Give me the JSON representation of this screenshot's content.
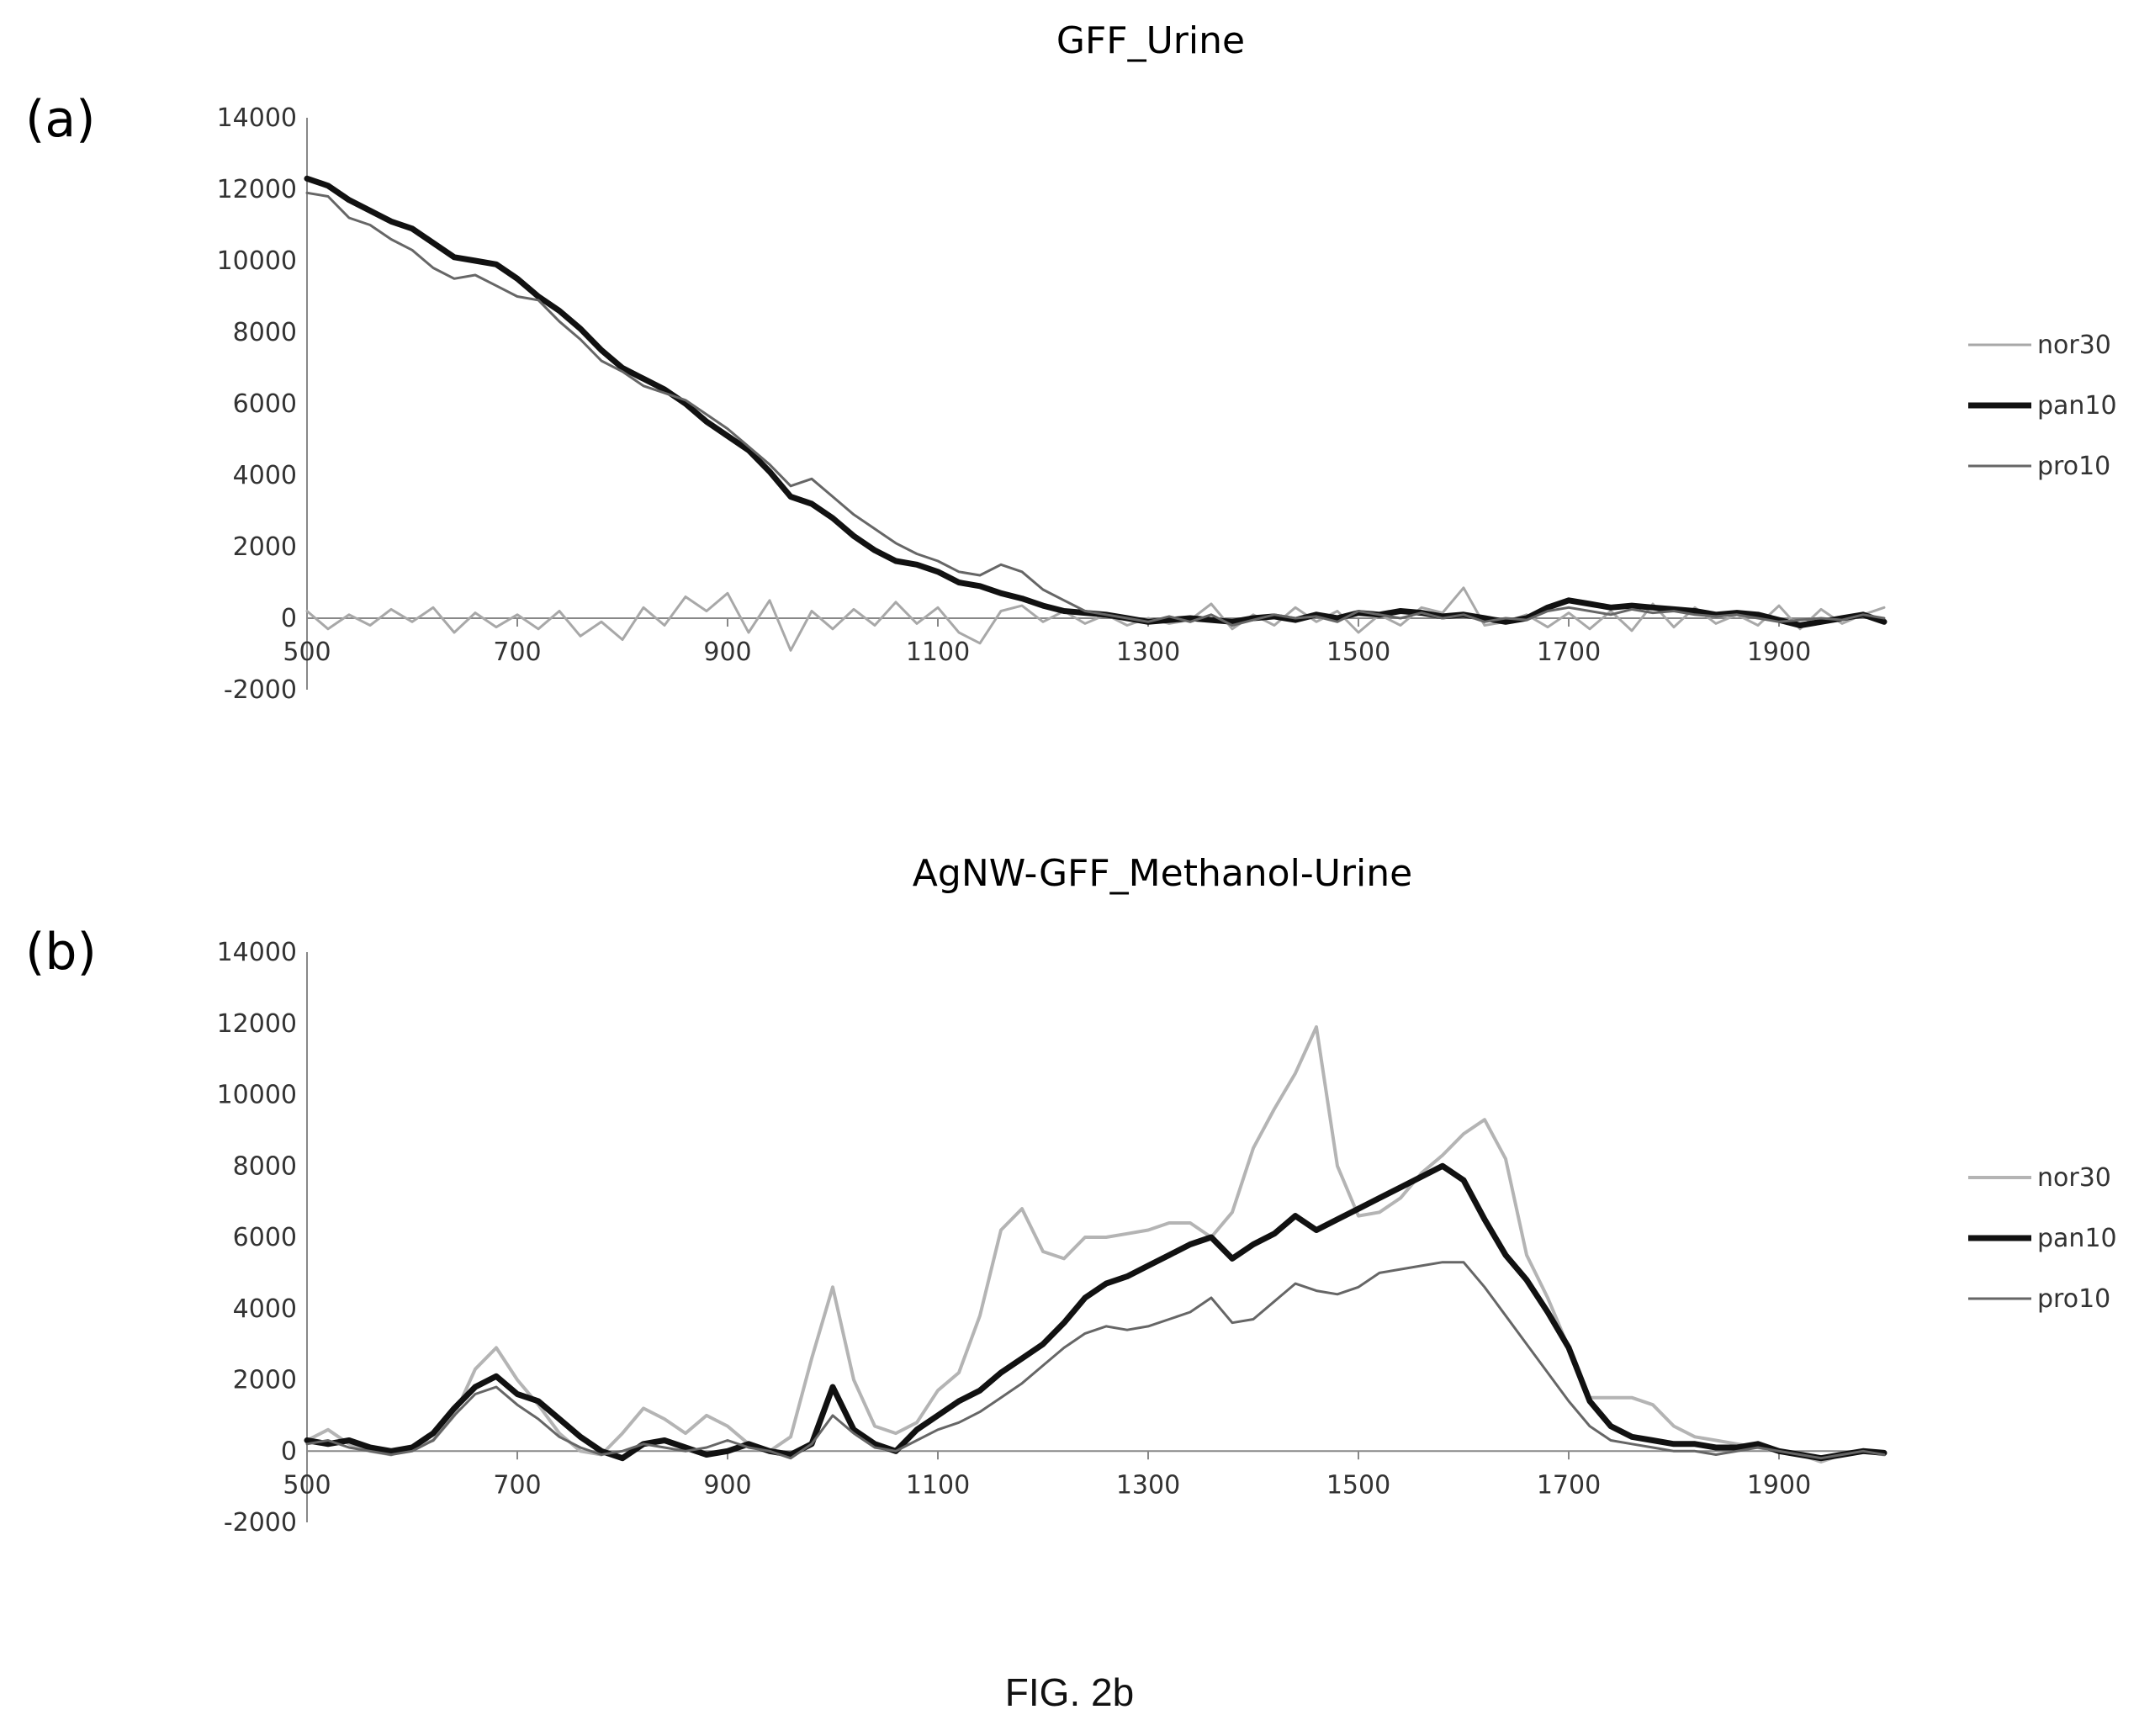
{
  "figure": {
    "caption": "FIG. 2b"
  },
  "chart_data": [
    {
      "type": "line",
      "panel": "(a)",
      "title": "GFF_Urine",
      "xlabel": "",
      "ylabel": "",
      "xlim": [
        500,
        2000
      ],
      "ylim": [
        -2000,
        14000
      ],
      "xticks": [
        500,
        700,
        900,
        1100,
        1300,
        1500,
        1700,
        1900
      ],
      "yticks": [
        -2000,
        0,
        2000,
        4000,
        6000,
        8000,
        10000,
        12000,
        14000
      ],
      "legend": "right",
      "series": [
        {
          "name": "nor30",
          "color": "#a8a8a8",
          "width": 3,
          "x": [
            500,
            520,
            540,
            560,
            580,
            600,
            620,
            640,
            660,
            680,
            700,
            720,
            740,
            760,
            780,
            800,
            820,
            840,
            860,
            880,
            900,
            920,
            940,
            960,
            980,
            1000,
            1020,
            1040,
            1060,
            1080,
            1100,
            1120,
            1140,
            1160,
            1180,
            1200,
            1220,
            1240,
            1260,
            1280,
            1300,
            1320,
            1340,
            1360,
            1380,
            1400,
            1420,
            1440,
            1460,
            1480,
            1500,
            1520,
            1540,
            1560,
            1580,
            1600,
            1620,
            1640,
            1660,
            1680,
            1700,
            1720,
            1740,
            1760,
            1780,
            1800,
            1820,
            1840,
            1860,
            1880,
            1900,
            1920,
            1940,
            1960,
            1980,
            2000
          ],
          "y": [
            200,
            -300,
            100,
            -200,
            250,
            -100,
            300,
            -400,
            150,
            -250,
            100,
            -300,
            200,
            -500,
            -100,
            -600,
            300,
            -200,
            600,
            200,
            700,
            -400,
            500,
            -900,
            200,
            -300,
            250,
            -200,
            450,
            -150,
            300,
            -400,
            -700,
            200,
            350,
            -100,
            200,
            -150,
            100,
            -200,
            0,
            -150,
            -50,
            400,
            -300,
            100,
            -200,
            300,
            -100,
            200,
            -400,
            100,
            -200,
            300,
            150,
            850,
            -200,
            -100,
            100,
            -250,
            150,
            -300,
            200,
            -350,
            400,
            -250,
            300,
            -150,
            100,
            -200,
            350,
            -300,
            250,
            -150,
            100,
            300
          ]
        },
        {
          "name": "pan10",
          "color": "#111111",
          "width": 7,
          "x": [
            500,
            520,
            540,
            560,
            580,
            600,
            620,
            640,
            660,
            680,
            700,
            720,
            740,
            760,
            780,
            800,
            820,
            840,
            860,
            880,
            900,
            920,
            940,
            960,
            980,
            1000,
            1020,
            1040,
            1060,
            1080,
            1100,
            1120,
            1140,
            1160,
            1180,
            1200,
            1220,
            1240,
            1260,
            1280,
            1300,
            1320,
            1340,
            1360,
            1380,
            1400,
            1420,
            1440,
            1460,
            1480,
            1500,
            1520,
            1540,
            1560,
            1580,
            1600,
            1620,
            1640,
            1660,
            1680,
            1700,
            1720,
            1740,
            1760,
            1780,
            1800,
            1820,
            1840,
            1860,
            1880,
            1900,
            1920,
            1940,
            1960,
            1980,
            2000
          ],
          "y": [
            12300,
            12100,
            11700,
            11400,
            11100,
            10900,
            10500,
            10100,
            10000,
            9900,
            9500,
            9000,
            8600,
            8100,
            7500,
            7000,
            6700,
            6400,
            6000,
            5500,
            5100,
            4700,
            4100,
            3400,
            3200,
            2800,
            2300,
            1900,
            1600,
            1500,
            1300,
            1000,
            900,
            700,
            550,
            350,
            200,
            150,
            100,
            0,
            -100,
            -50,
            0,
            -50,
            -100,
            0,
            50,
            -50,
            100,
            0,
            150,
            100,
            200,
            150,
            50,
            100,
            0,
            -100,
            0,
            300,
            500,
            400,
            300,
            350,
            300,
            250,
            200,
            100,
            150,
            100,
            -50,
            -200,
            -100,
            0,
            100,
            -100
          ]
        },
        {
          "name": "pro10",
          "color": "#666666",
          "width": 3,
          "x": [
            500,
            520,
            540,
            560,
            580,
            600,
            620,
            640,
            660,
            680,
            700,
            720,
            740,
            760,
            780,
            800,
            820,
            840,
            860,
            880,
            900,
            920,
            940,
            960,
            980,
            1000,
            1020,
            1040,
            1060,
            1080,
            1100,
            1120,
            1140,
            1160,
            1180,
            1200,
            1220,
            1240,
            1260,
            1280,
            1300,
            1320,
            1340,
            1360,
            1380,
            1400,
            1420,
            1440,
            1460,
            1480,
            1500,
            1520,
            1540,
            1560,
            1580,
            1600,
            1620,
            1640,
            1660,
            1680,
            1700,
            1720,
            1740,
            1760,
            1780,
            1800,
            1820,
            1840,
            1860,
            1880,
            1900,
            1920,
            1940,
            1960,
            1980,
            2000
          ],
          "y": [
            11900,
            11800,
            11200,
            11000,
            10600,
            10300,
            9800,
            9500,
            9600,
            9300,
            9000,
            8900,
            8300,
            7800,
            7200,
            6900,
            6500,
            6300,
            6100,
            5700,
            5300,
            4800,
            4300,
            3700,
            3900,
            3400,
            2900,
            2500,
            2100,
            1800,
            1600,
            1300,
            1200,
            1500,
            1300,
            800,
            500,
            200,
            100,
            0,
            -100,
            50,
            -100,
            100,
            -200,
            -50,
            100,
            0,
            50,
            -100,
            200,
            100,
            0,
            150,
            0,
            100,
            -100,
            0,
            -50,
            200,
            300,
            200,
            100,
            250,
            150,
            200,
            100,
            50,
            100,
            0,
            -100,
            -50,
            0,
            -50,
            100,
            0
          ]
        }
      ]
    },
    {
      "type": "line",
      "panel": "(b)",
      "title": "AgNW-GFF_Methanol-Urine",
      "xlabel": "",
      "ylabel": "",
      "xlim": [
        500,
        2000
      ],
      "ylim": [
        -2000,
        14000
      ],
      "xticks": [
        500,
        700,
        900,
        1100,
        1300,
        1500,
        1700,
        1900
      ],
      "yticks": [
        -2000,
        0,
        2000,
        4000,
        6000,
        8000,
        10000,
        12000,
        14000
      ],
      "legend": "right",
      "series": [
        {
          "name": "nor30",
          "color": "#b4b4b4",
          "width": 4,
          "x": [
            500,
            520,
            540,
            560,
            580,
            600,
            620,
            640,
            660,
            680,
            700,
            720,
            740,
            760,
            780,
            800,
            820,
            840,
            860,
            880,
            900,
            920,
            940,
            960,
            980,
            1000,
            1020,
            1040,
            1060,
            1080,
            1100,
            1120,
            1140,
            1160,
            1180,
            1200,
            1220,
            1240,
            1260,
            1280,
            1300,
            1320,
            1340,
            1360,
            1380,
            1400,
            1420,
            1440,
            1460,
            1480,
            1500,
            1520,
            1540,
            1560,
            1580,
            1600,
            1620,
            1640,
            1660,
            1680,
            1700,
            1720,
            1740,
            1760,
            1780,
            1800,
            1820,
            1840,
            1860,
            1880,
            1900,
            1920,
            1940,
            1960,
            1980,
            2000
          ],
          "y": [
            300,
            600,
            200,
            0,
            -100,
            100,
            300,
            1000,
            2300,
            2900,
            2000,
            1300,
            500,
            0,
            -100,
            500,
            1200,
            900,
            500,
            1000,
            700,
            200,
            0,
            400,
            2600,
            4600,
            2000,
            700,
            500,
            800,
            1700,
            2200,
            3800,
            6200,
            6800,
            5600,
            5400,
            6000,
            6000,
            6100,
            6200,
            6400,
            6400,
            6000,
            6700,
            8500,
            9600,
            10600,
            11900,
            8000,
            6600,
            6700,
            7100,
            7800,
            8300,
            8900,
            9300,
            8200,
            5500,
            4300,
            2900,
            1500,
            1500,
            1500,
            1300,
            700,
            400,
            300,
            200,
            100,
            0,
            -100,
            -300,
            -100,
            0,
            -100
          ]
        },
        {
          "name": "pan10",
          "color": "#111111",
          "width": 7,
          "x": [
            500,
            520,
            540,
            560,
            580,
            600,
            620,
            640,
            660,
            680,
            700,
            720,
            740,
            760,
            780,
            800,
            820,
            840,
            860,
            880,
            900,
            920,
            940,
            960,
            980,
            1000,
            1020,
            1040,
            1060,
            1080,
            1100,
            1120,
            1140,
            1160,
            1180,
            1200,
            1220,
            1240,
            1260,
            1280,
            1300,
            1320,
            1340,
            1360,
            1380,
            1400,
            1420,
            1440,
            1460,
            1480,
            1500,
            1520,
            1540,
            1560,
            1580,
            1600,
            1620,
            1640,
            1660,
            1680,
            1700,
            1720,
            1740,
            1760,
            1780,
            1800,
            1820,
            1840,
            1860,
            1880,
            1900,
            1920,
            1940,
            1960,
            1980,
            2000
          ],
          "y": [
            300,
            200,
            300,
            100,
            0,
            100,
            500,
            1200,
            1800,
            2100,
            1600,
            1400,
            900,
            400,
            0,
            -200,
            200,
            300,
            100,
            -100,
            0,
            200,
            0,
            -100,
            200,
            1800,
            600,
            200,
            0,
            600,
            1000,
            1400,
            1700,
            2200,
            2600,
            3000,
            3600,
            4300,
            4700,
            4900,
            5200,
            5500,
            5800,
            6000,
            5400,
            5800,
            6100,
            6600,
            6200,
            6500,
            6800,
            7100,
            7400,
            7700,
            8000,
            7600,
            6500,
            5500,
            4800,
            3900,
            2900,
            1400,
            700,
            400,
            300,
            200,
            200,
            100,
            100,
            200,
            0,
            -100,
            -200,
            -100,
            0,
            -50
          ]
        },
        {
          "name": "pro10",
          "color": "#666666",
          "width": 3,
          "x": [
            500,
            520,
            540,
            560,
            580,
            600,
            620,
            640,
            660,
            680,
            700,
            720,
            740,
            760,
            780,
            800,
            820,
            840,
            860,
            880,
            900,
            920,
            940,
            960,
            980,
            1000,
            1020,
            1040,
            1060,
            1080,
            1100,
            1120,
            1140,
            1160,
            1180,
            1200,
            1220,
            1240,
            1260,
            1280,
            1300,
            1320,
            1340,
            1360,
            1380,
            1400,
            1420,
            1440,
            1460,
            1480,
            1500,
            1520,
            1540,
            1560,
            1580,
            1600,
            1620,
            1640,
            1660,
            1680,
            1700,
            1720,
            1740,
            1760,
            1780,
            1800,
            1820,
            1840,
            1860,
            1880,
            1900,
            1920,
            1940,
            1960,
            1980,
            2000
          ],
          "y": [
            200,
            300,
            100,
            0,
            -100,
            0,
            300,
            1000,
            1600,
            1800,
            1300,
            900,
            400,
            100,
            -100,
            0,
            200,
            100,
            0,
            100,
            300,
            100,
            0,
            -200,
            200,
            1000,
            500,
            100,
            0,
            300,
            600,
            800,
            1100,
            1500,
            1900,
            2400,
            2900,
            3300,
            3500,
            3400,
            3500,
            3700,
            3900,
            4300,
            3600,
            3700,
            4200,
            4700,
            4500,
            4400,
            4600,
            5000,
            5100,
            5200,
            5300,
            5300,
            4600,
            3800,
            3000,
            2200,
            1400,
            700,
            300,
            200,
            100,
            0,
            0,
            -100,
            0,
            100,
            0,
            -100,
            -200,
            -100,
            0,
            -100
          ]
        }
      ]
    }
  ]
}
